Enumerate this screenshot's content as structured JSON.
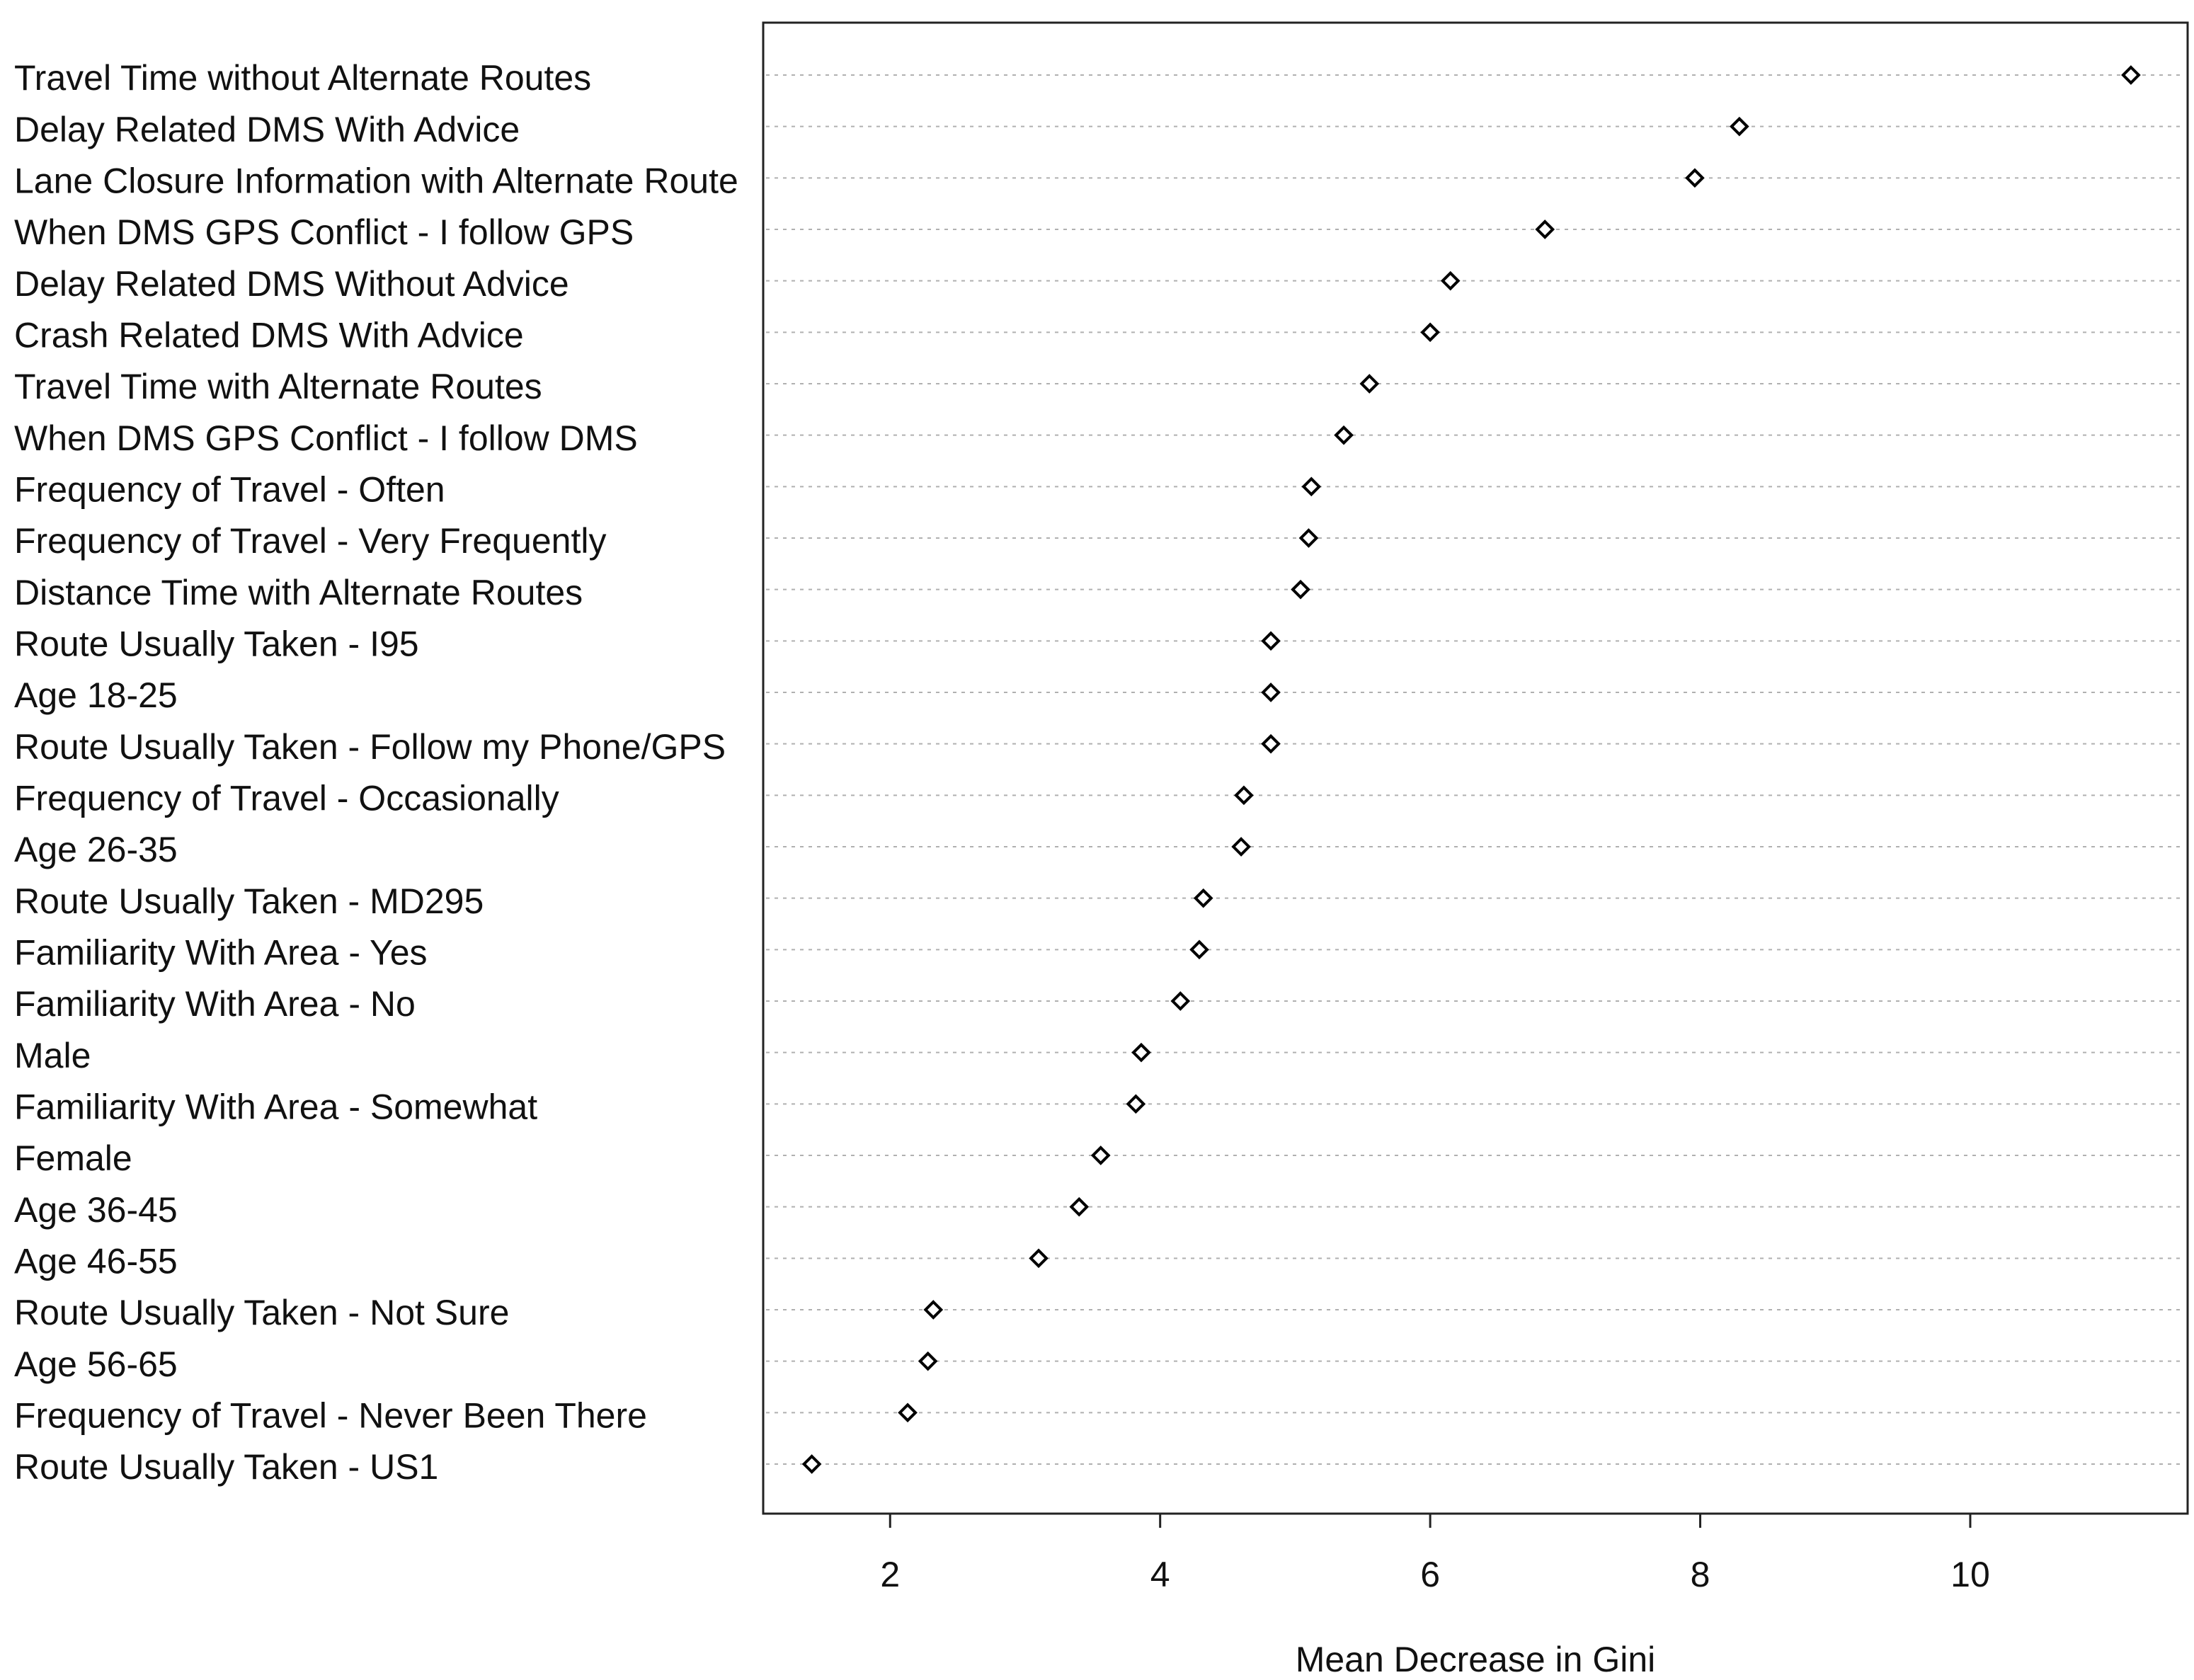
{
  "chart_data": {
    "type": "dot",
    "x_label": "Mean Decrease in Gini",
    "categories": [
      "Travel Time without Alternate Routes",
      "Delay Related DMS With Advice",
      "Lane Closure Information with Alternate Route",
      "When DMS GPS Conflict - I follow GPS",
      "Delay Related DMS Without Advice",
      "Crash Related DMS With Advice",
      "Travel Time with Alternate Routes",
      "When DMS GPS Conflict - I follow DMS",
      "Frequency of Travel - Often",
      "Frequency of Travel - Very Frequently",
      "Distance Time with Alternate Routes",
      "Route Usually Taken - I95",
      "Age 18-25",
      "Route Usually Taken - Follow my Phone/GPS",
      "Frequency of Travel - Occasionally",
      "Age 26-35",
      "Route Usually Taken - MD295",
      "Familiarity With Area - Yes",
      "Familiarity With Area - No",
      "Male",
      "Familiarity With Area - Somewhat",
      "Female",
      "Age 36-45",
      "Age 46-55",
      "Route Usually Taken - Not Sure",
      "Age 56-65",
      "Frequency of Travel - Never Been There",
      "Route Usually Taken - US1"
    ],
    "values": [
      11.19,
      8.29,
      7.96,
      6.85,
      6.15,
      6.0,
      5.55,
      5.36,
      5.12,
      5.1,
      5.04,
      4.82,
      4.82,
      4.82,
      4.62,
      4.6,
      4.32,
      4.29,
      4.15,
      3.86,
      3.82,
      3.56,
      3.4,
      3.1,
      2.32,
      2.28,
      2.13,
      1.42
    ],
    "color": "#000000",
    "xlim": [
      1.06,
      11.61
    ],
    "xticks": [
      2,
      4,
      6,
      8,
      10
    ]
  }
}
